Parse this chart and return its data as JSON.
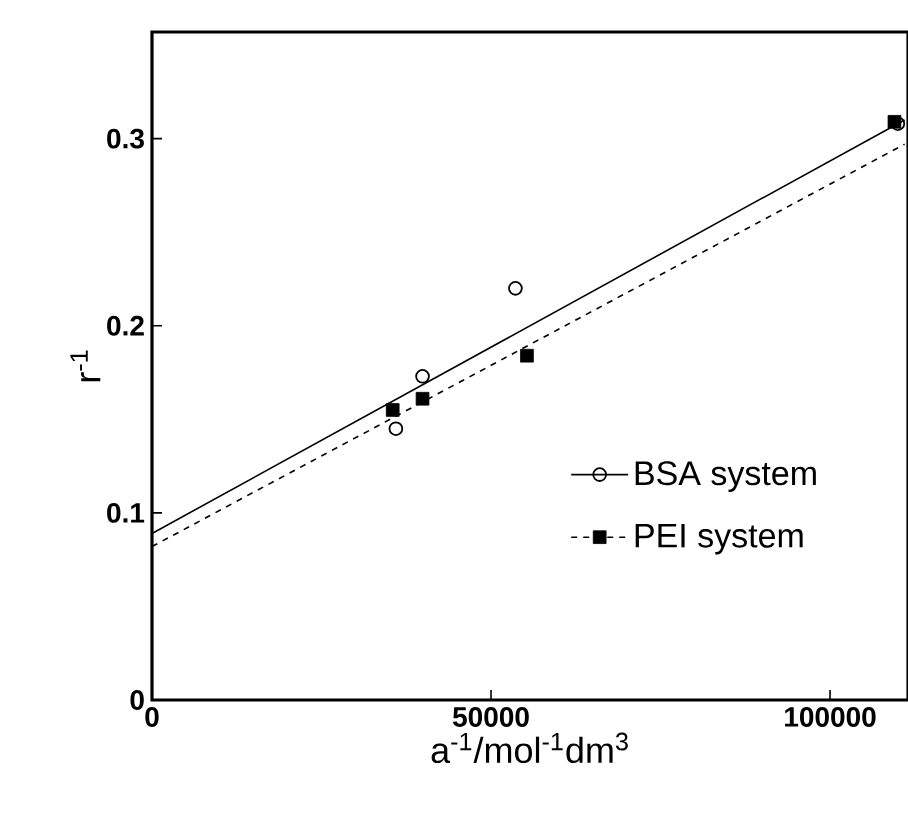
{
  "chart_data": {
    "type": "scatter",
    "xlabel": "a$^{-1}$/mol$^{-1}$dm$^{3}$",
    "ylabel": "r$^{-1}$",
    "xlim": [
      0,
      111500
    ],
    "ylim": [
      0,
      0.357
    ],
    "xticks": [
      0,
      50000,
      100000
    ],
    "yticks": [
      0,
      0.1,
      0.2,
      0.3
    ],
    "grid": false,
    "legend": "right",
    "series": [
      {
        "name": "BSA system",
        "marker": "circle",
        "line_style": "solid",
        "color": "#000000",
        "x": [
          35970,
          39900,
          53600,
          110000
        ],
        "values": [
          0.145,
          0.173,
          0.22,
          0.308
        ]
      },
      {
        "name": "PEI system",
        "marker": "square",
        "line_style": "dashed",
        "color": "#000000",
        "x": [
          35500,
          39900,
          55300,
          109500
        ],
        "values": [
          0.155,
          0.161,
          0.184,
          0.309
        ]
      },
      {
        "type": "line",
        "marker": "none",
        "line_style": "solid",
        "color": "#000000",
        "x": [
          0,
          111000
        ],
        "values": [
          0.089,
          0.31
        ]
      },
      {
        "type": "line",
        "marker": "none",
        "line_style": "dashed",
        "color": "#000000",
        "x": [
          0,
          111000
        ],
        "values": [
          0.082,
          0.297
        ]
      }
    ]
  }
}
